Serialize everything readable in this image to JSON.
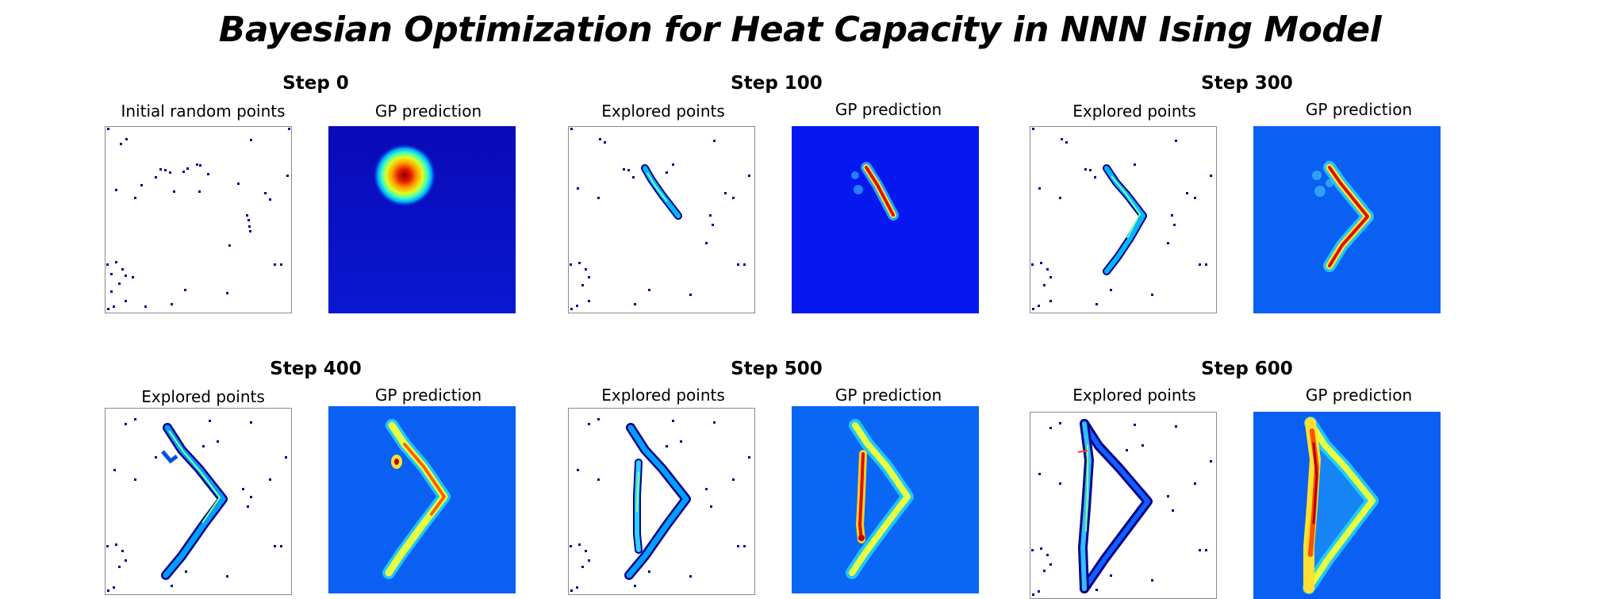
{
  "title": "Bayesian Optimization for Heat Capacity in NNN Ising Model",
  "gp_label": "GP prediction",
  "colors": {
    "gp_background_step0": "#0a10c8",
    "gp_background": "#0a5cf0",
    "point": "#00008b"
  },
  "panels": [
    {
      "step": "Step 0",
      "left_label": "Initial random points"
    },
    {
      "step": "Step 100",
      "left_label": "Explored points"
    },
    {
      "step": "Step 300",
      "left_label": "Explored points"
    },
    {
      "step": "Step 400",
      "left_label": "Explored points"
    },
    {
      "step": "Step 500",
      "left_label": "Explored points"
    },
    {
      "step": "Step 600",
      "left_label": "Explored points"
    }
  ]
}
